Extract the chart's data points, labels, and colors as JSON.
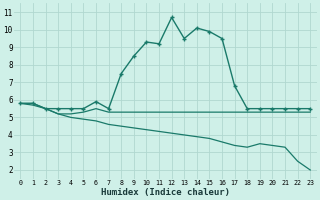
{
  "xlabel": "Humidex (Indice chaleur)",
  "bg_color": "#cff0e8",
  "grid_color": "#b0d8d0",
  "line_color": "#1a7a6a",
  "xticks": [
    0,
    1,
    2,
    3,
    4,
    5,
    6,
    7,
    8,
    9,
    10,
    11,
    12,
    13,
    14,
    15,
    16,
    17,
    18,
    19,
    20,
    21,
    22,
    23
  ],
  "yticks": [
    2,
    3,
    4,
    5,
    6,
    7,
    8,
    9,
    10,
    11
  ],
  "xlim": [
    -0.5,
    23.5
  ],
  "ylim": [
    1.5,
    11.5
  ],
  "line1_x": [
    0,
    1,
    2,
    3,
    4,
    5,
    6,
    7,
    8,
    9,
    10,
    11,
    12,
    13,
    14,
    15,
    16,
    17,
    18,
    19,
    20,
    21,
    22,
    23
  ],
  "line1_y": [
    5.8,
    5.8,
    5.5,
    5.5,
    5.5,
    5.5,
    5.9,
    5.5,
    7.5,
    8.5,
    9.3,
    9.2,
    10.7,
    9.5,
    10.1,
    9.9,
    9.5,
    6.8,
    5.5,
    5.5,
    5.5,
    5.5,
    5.5,
    5.5
  ],
  "line2_x": [
    0,
    1,
    2,
    3,
    4,
    5,
    6,
    7,
    8,
    9,
    10,
    11,
    12,
    13,
    14,
    15,
    16,
    17,
    18,
    19,
    20,
    21,
    22,
    23
  ],
  "line2_y": [
    5.8,
    5.8,
    5.5,
    5.2,
    5.2,
    5.3,
    5.5,
    5.3,
    5.3,
    5.3,
    5.3,
    5.3,
    5.3,
    5.3,
    5.3,
    5.3,
    5.3,
    5.3,
    5.3,
    5.3,
    5.3,
    5.3,
    5.3,
    5.3
  ],
  "line3_x": [
    0,
    1,
    2,
    3,
    4,
    5,
    6,
    7,
    8,
    9,
    10,
    11,
    12,
    13,
    14,
    15,
    16,
    17,
    18,
    19,
    20,
    21,
    22,
    23
  ],
  "line3_y": [
    5.8,
    5.7,
    5.5,
    5.2,
    5.0,
    4.9,
    4.8,
    4.6,
    4.5,
    4.4,
    4.3,
    4.2,
    4.1,
    4.0,
    3.9,
    3.8,
    3.6,
    3.4,
    3.3,
    3.5,
    3.4,
    3.3,
    2.5,
    2.0
  ]
}
